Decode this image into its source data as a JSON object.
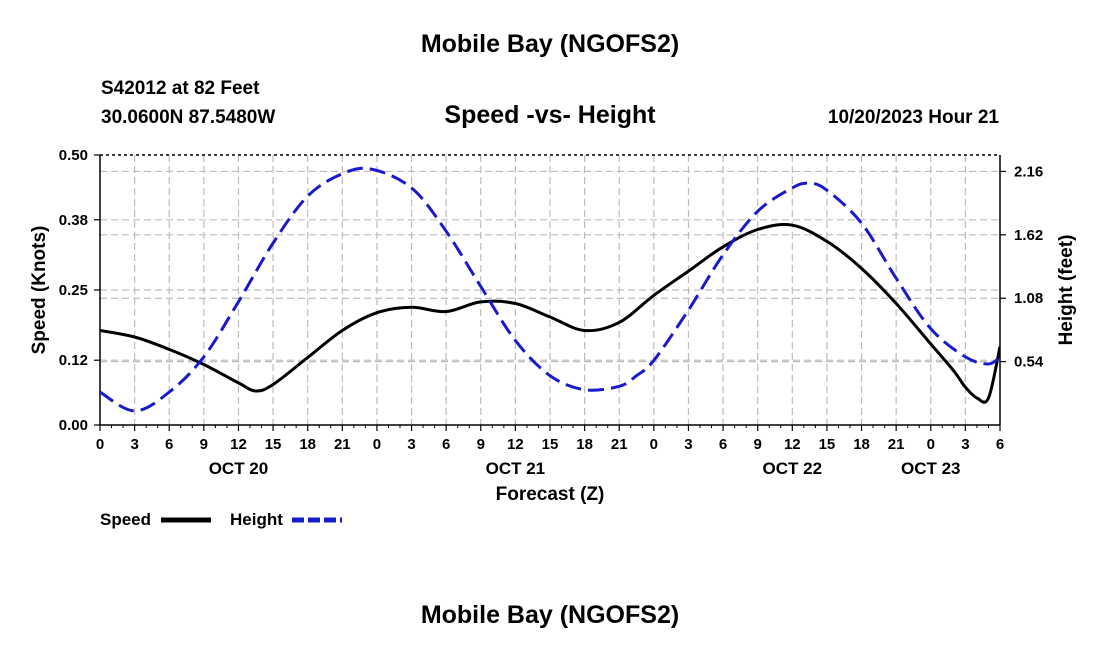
{
  "page": {
    "title": "Mobile Bay (NGOFS2)",
    "title_bottom": "Mobile Bay (NGOFS2)",
    "station_line": "S42012 at 82 Feet",
    "coords_line": "30.0600N  87.5480W",
    "chart_title": "Speed -vs- Height",
    "datetime": "10/20/2023 Hour 21"
  },
  "chart_data": {
    "type": "line",
    "title": "Speed -vs- Height",
    "xlabel": "Forecast (Z)",
    "ylabel": "Speed (Knots)",
    "y2label": "Height (feet)",
    "x_unit": "hours since Oct 20 00Z",
    "xlim": [
      0,
      78
    ],
    "ylim": [
      0,
      0.5
    ],
    "y2lim": [
      0,
      2.3
    ],
    "grid": true,
    "x_ticks": [
      0,
      3,
      6,
      9,
      12,
      15,
      18,
      21,
      24,
      27,
      30,
      33,
      36,
      39,
      42,
      45,
      48,
      51,
      54,
      57,
      60,
      63,
      66,
      69,
      72,
      75,
      78
    ],
    "x_tick_labels": [
      "0",
      "3",
      "6",
      "9",
      "12",
      "15",
      "18",
      "21",
      "0",
      "3",
      "6",
      "9",
      "12",
      "15",
      "18",
      "21",
      "0",
      "3",
      "6",
      "9",
      "12",
      "15",
      "18",
      "21",
      "0",
      "3",
      "6"
    ],
    "date_labels": [
      {
        "x": 12,
        "label": "OCT 20"
      },
      {
        "x": 36,
        "label": "OCT 21"
      },
      {
        "x": 60,
        "label": "OCT 22"
      },
      {
        "x": 72,
        "label": "OCT 23"
      }
    ],
    "y_ticks": [
      0.0,
      0.12,
      0.25,
      0.38,
      0.5
    ],
    "y_tick_labels": [
      "0.00",
      "0.12",
      "0.25",
      "0.38",
      "0.50"
    ],
    "y2_ticks": [
      0.54,
      1.08,
      1.62,
      2.16
    ],
    "y2_tick_labels": [
      "0.54",
      "1.08",
      "1.62",
      "2.16"
    ],
    "legend": [
      {
        "name": "Speed",
        "color": "#000000",
        "style": "solid"
      },
      {
        "name": "Height",
        "color": "#1a1acc",
        "style": "dashed"
      }
    ],
    "series": [
      {
        "name": "Speed",
        "axis": "left",
        "color": "#000000",
        "x": [
          0,
          3,
          6,
          9,
          12,
          13.5,
          15,
          18,
          21,
          24,
          27,
          30,
          33,
          36,
          39,
          42,
          45,
          48,
          51,
          54,
          57,
          60,
          63,
          66,
          69,
          72,
          74,
          75,
          76,
          77,
          78
        ],
        "values": [
          0.175,
          0.163,
          0.14,
          0.112,
          0.078,
          0.063,
          0.075,
          0.125,
          0.175,
          0.208,
          0.218,
          0.21,
          0.228,
          0.225,
          0.2,
          0.175,
          0.19,
          0.24,
          0.285,
          0.33,
          0.362,
          0.37,
          0.34,
          0.29,
          0.225,
          0.15,
          0.1,
          0.07,
          0.05,
          0.05,
          0.145
        ]
      },
      {
        "name": "Height",
        "axis": "right",
        "color": "#1a1acc",
        "x": [
          0,
          3,
          6,
          9,
          12,
          15,
          18,
          21,
          23.5,
          27,
          30,
          33,
          36,
          39,
          42,
          45,
          46.5,
          48,
          51,
          54,
          57,
          60,
          61.5,
          63,
          66,
          69,
          72,
          75,
          77,
          78
        ],
        "values": [
          0.28,
          0.12,
          0.28,
          0.58,
          1.05,
          1.55,
          1.95,
          2.14,
          2.18,
          2.02,
          1.65,
          1.18,
          0.72,
          0.42,
          0.3,
          0.33,
          0.42,
          0.55,
          0.98,
          1.45,
          1.82,
          2.02,
          2.06,
          2.0,
          1.72,
          1.25,
          0.82,
          0.58,
          0.52,
          0.58
        ]
      }
    ]
  }
}
